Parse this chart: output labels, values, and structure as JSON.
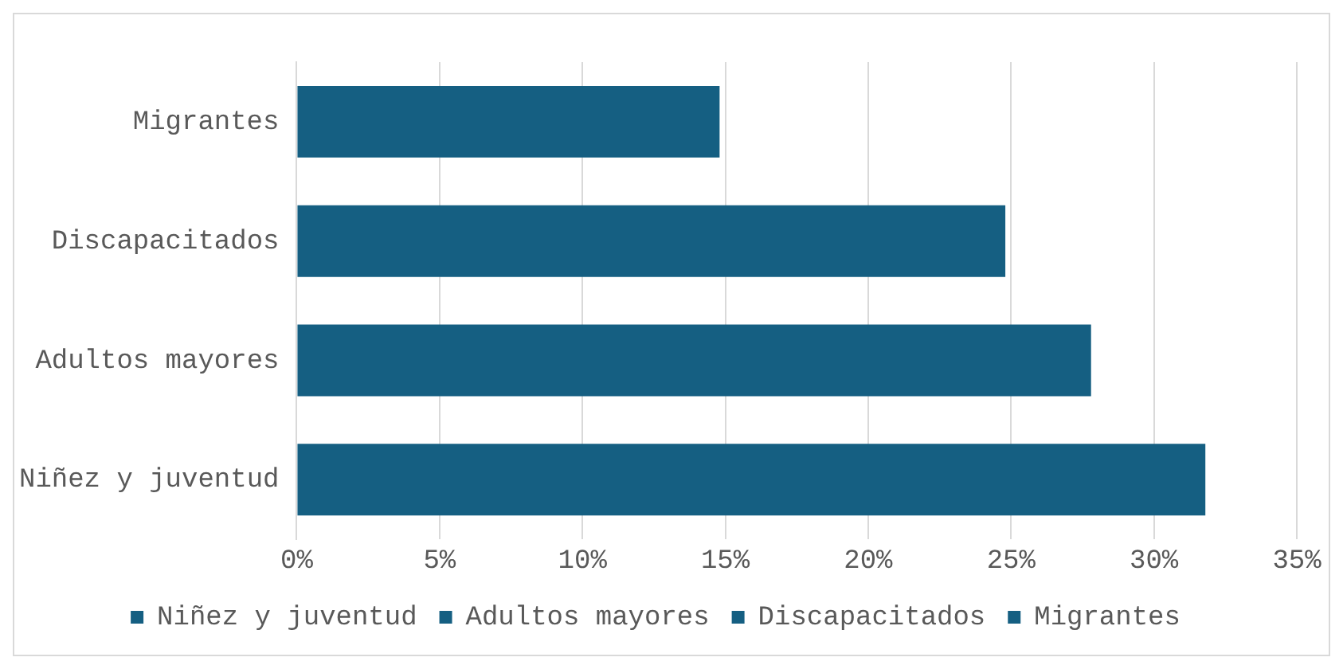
{
  "chart_data": {
    "type": "bar",
    "orientation": "horizontal",
    "stacked": true,
    "categories": [
      "Migrantes",
      "Discapacitados",
      "Adultos mayores",
      "Niñez y juventud"
    ],
    "series": [
      {
        "name": "Niñez y juventud",
        "color": "#155f82",
        "values": [
          null,
          null,
          null,
          31.8
        ]
      },
      {
        "name": "Adultos mayores",
        "color": "#155f82",
        "values": [
          null,
          null,
          27.8,
          null
        ]
      },
      {
        "name": "Discapacitados",
        "color": "#155f82",
        "values": [
          null,
          24.8,
          null,
          null
        ]
      },
      {
        "name": "Migrantes",
        "color": "#155f82",
        "values": [
          14.8,
          null,
          null,
          null
        ]
      }
    ],
    "xlim": [
      0,
      35
    ],
    "xticks": [
      {
        "value": 0,
        "label": "0%"
      },
      {
        "value": 5,
        "label": "5%"
      },
      {
        "value": 10,
        "label": "10%"
      },
      {
        "value": 15,
        "label": "15%"
      },
      {
        "value": 20,
        "label": "20%"
      },
      {
        "value": 25,
        "label": "25%"
      },
      {
        "value": 30,
        "label": "30%"
      },
      {
        "value": 35,
        "label": "35%"
      }
    ],
    "grid": "x",
    "legend": "bottom"
  }
}
